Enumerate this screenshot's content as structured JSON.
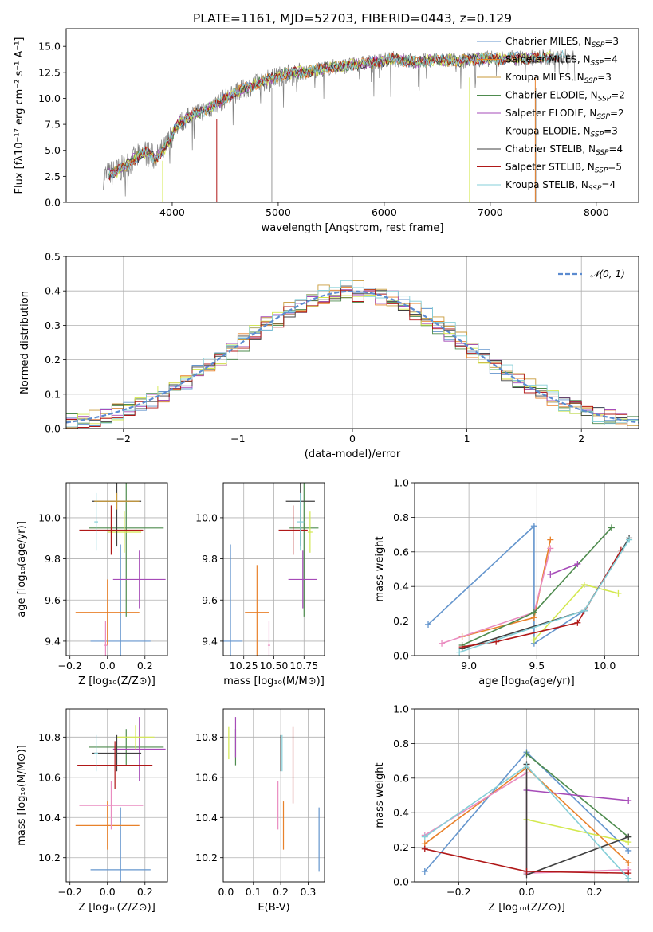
{
  "colors": {
    "Chabrier MILES": "#6495cd",
    "Salpeter MILES": "#e8812a",
    "Kroupa MILES": "#c89a3a",
    "Chabrier ELODIE": "#4e8b4e",
    "Salpeter ELODIE": "#a64bb8",
    "Kroupa ELODIE": "#d3e84e",
    "Chabrier STELIB": "#404040",
    "Salpeter STELIB": "#b01818",
    "Kroupa STELIB": "#86cfd8",
    "Pink": "#ea8cc0",
    "data": "#808080"
  },
  "chart_data": [
    {
      "id": "spectrum",
      "type": "line",
      "title": "PLATE=1161, MJD=52703, FIBERID=0443, z=0.129",
      "xlabel": "wavelength [Angstrom, rest frame]",
      "ylabel": "Flux [fλ10⁻¹⁷ erg cm⁻² s⁻¹ A⁻¹]",
      "xlim": [
        3000,
        8400
      ],
      "ylim": [
        0,
        16.7
      ],
      "xticks": [
        "4000",
        "5000",
        "6000",
        "7000",
        "8000"
      ],
      "yticks": [
        "0.0",
        "2.5",
        "5.0",
        "7.5",
        "10.0",
        "12.5",
        "15.0"
      ],
      "legend": [
        {
          "label": "Chabrier MILES, N",
          "sub": "SSP",
          "suffix": "=3"
        },
        {
          "label": "Salpeter MILES, N",
          "sub": "SSP",
          "suffix": "=4"
        },
        {
          "label": "Kroupa MILES, N",
          "sub": "SSP",
          "suffix": "=3"
        },
        {
          "label": "Chabrier ELODIE, N",
          "sub": "SSP",
          "suffix": "=2"
        },
        {
          "label": "Salpeter ELODIE, N",
          "sub": "SSP",
          "suffix": "=2"
        },
        {
          "label": "Kroupa ELODIE, N",
          "sub": "SSP",
          "suffix": "=3"
        },
        {
          "label": "Chabrier STELIB, N",
          "sub": "SSP",
          "suffix": "=4"
        },
        {
          "label": "Salpeter STELIB, N",
          "sub": "SSP",
          "suffix": "=5"
        },
        {
          "label": "Kroupa STELIB, N",
          "sub": "SSP",
          "suffix": "=4"
        }
      ],
      "legend_position": "right",
      "data_spine": [
        [
          3350,
          2.5
        ],
        [
          3500,
          3.1
        ],
        [
          3650,
          4.2
        ],
        [
          3750,
          4.8
        ],
        [
          3850,
          4.2
        ],
        [
          3950,
          5.5
        ],
        [
          4050,
          7.5
        ],
        [
          4200,
          8.5
        ],
        [
          4350,
          9.0
        ],
        [
          4500,
          10.0
        ],
        [
          4700,
          11.0
        ],
        [
          4900,
          11.8
        ],
        [
          5100,
          12.4
        ],
        [
          5300,
          12.6
        ],
        [
          5500,
          13.0
        ],
        [
          5700,
          13.2
        ],
        [
          5900,
          13.5
        ],
        [
          6100,
          13.8
        ],
        [
          6300,
          13.5
        ],
        [
          6500,
          13.7
        ],
        [
          6700,
          13.6
        ],
        [
          6900,
          13.8
        ],
        [
          7100,
          13.8
        ],
        [
          7300,
          13.9
        ],
        [
          7500,
          13.9
        ],
        [
          7700,
          14.0
        ],
        [
          7800,
          14.0
        ]
      ],
      "model_end": 7400,
      "gap_wl": [
        4940,
        6810,
        7430
      ]
    },
    {
      "id": "residuals",
      "type": "histogram",
      "xlabel": "(data-model)/error",
      "ylabel": "Normed distribution",
      "xlim": [
        -2.5,
        2.5
      ],
      "ylim": [
        0,
        0.5
      ],
      "xticks": [
        "−2",
        "−1",
        "0",
        "1",
        "2"
      ],
      "yticks": [
        "0.0",
        "0.1",
        "0.2",
        "0.3",
        "0.4",
        "0.5"
      ],
      "grid": true,
      "bin_width": 0.1,
      "legend": "𝒩(0, 1)",
      "legend_position": "top-right",
      "series_amp": [
        0.4,
        0.395,
        0.405,
        0.39,
        0.4,
        0.395,
        0.4,
        0.385,
        0.41
      ]
    },
    {
      "id": "age-vs-Z",
      "type": "errorbar",
      "xlabel": "Z [log₁₀(Z/Z⊙)]",
      "ylabel": "age  [log₁₀(age/yr)]",
      "xlim": [
        -0.22,
        0.32
      ],
      "ylim": [
        9.33,
        10.17
      ],
      "xticks": [
        "−0.2",
        "0.0",
        "0.2"
      ],
      "yticks": [
        "9.4",
        "9.6",
        "9.8",
        "10.0"
      ],
      "grid": true,
      "points": [
        {
          "s": "Chabrier MILES",
          "x": 0.07,
          "y": 9.4,
          "xe": 0.16,
          "ye": 0.47
        },
        {
          "s": "Salpeter MILES",
          "x": 0.0,
          "y": 9.54,
          "xe": 0.17,
          "ye": 0.16
        },
        {
          "s": "Pink",
          "x": -0.01,
          "y": 9.38,
          "xe": 0.01,
          "ye": 0.12
        },
        {
          "s": "Chabrier ELODIE",
          "x": 0.1,
          "y": 9.95,
          "xe": 0.2,
          "ye": 0.43
        },
        {
          "s": "Salpeter ELODIE",
          "x": 0.17,
          "y": 9.7,
          "xe": 0.14,
          "ye": 0.14
        },
        {
          "s": "Kroupa ELODIE",
          "x": 0.09,
          "y": 9.93,
          "xe": 0.09,
          "ye": 0.1
        },
        {
          "s": "Chabrier STELIB",
          "x": 0.05,
          "y": 10.08,
          "xe": 0.13,
          "ye": 0.22
        },
        {
          "s": "Salpeter STELIB",
          "x": 0.02,
          "y": 9.94,
          "xe": 0.17,
          "ye": 0.12
        },
        {
          "s": "Kroupa STELIB",
          "x": -0.06,
          "y": 9.98,
          "xe": 0.01,
          "ye": 0.14
        },
        {
          "s": "Kroupa MILES",
          "x": 0.05,
          "y": 10.08,
          "xe": 0.12,
          "ye": 0.04
        }
      ]
    },
    {
      "id": "age-vs-mass",
      "type": "errorbar",
      "xlabel": "mass [log₁₀(M/M⊙)]",
      "xlim": [
        10.08,
        10.92
      ],
      "ylim": [
        9.33,
        10.17
      ],
      "xticks": [
        "10.25",
        "10.50",
        "10.75"
      ],
      "yticks": [
        "9.4",
        "9.6",
        "9.8",
        "10.0"
      ],
      "grid": true,
      "points": [
        {
          "s": "Chabrier MILES",
          "x": 10.14,
          "y": 9.4,
          "xe": 0.1,
          "ye": 0.47
        },
        {
          "s": "Salpeter MILES",
          "x": 10.36,
          "y": 9.54,
          "xe": 0.1,
          "ye": 0.23
        },
        {
          "s": "Pink",
          "x": 10.46,
          "y": 9.38,
          "xe": 0.01,
          "ye": 0.12
        },
        {
          "s": "Chabrier ELODIE",
          "x": 10.75,
          "y": 9.95,
          "xe": 0.12,
          "ye": 0.43
        },
        {
          "s": "Salpeter ELODIE",
          "x": 10.74,
          "y": 9.7,
          "xe": 0.12,
          "ye": 0.14
        },
        {
          "s": "Kroupa ELODIE",
          "x": 10.8,
          "y": 9.93,
          "xe": 0.02,
          "ye": 0.1
        },
        {
          "s": "Chabrier STELIB",
          "x": 10.72,
          "y": 10.08,
          "xe": 0.12,
          "ye": 0.22
        },
        {
          "s": "Salpeter STELIB",
          "x": 10.66,
          "y": 9.94,
          "xe": 0.12,
          "ye": 0.12
        },
        {
          "s": "Kroupa STELIB",
          "x": 10.72,
          "y": 9.98,
          "xe": 0.03,
          "ye": 0.14
        }
      ]
    },
    {
      "id": "weight-vs-age",
      "type": "line",
      "xlabel": "age  [log₁₀(age/yr)]",
      "ylabel": "mass weight",
      "xlim": [
        8.6,
        10.25
      ],
      "ylim": [
        0,
        1
      ],
      "xticks": [
        "9.0",
        "9.5",
        "10.0"
      ],
      "yticks": [
        "0.0",
        "0.2",
        "0.4",
        "0.6",
        "0.8",
        "1.0"
      ],
      "grid": true,
      "series": [
        {
          "s": "Chabrier MILES",
          "x": [
            8.7,
            9.48,
            9.48,
            9.85
          ],
          "y": [
            0.18,
            0.75,
            0.07,
            0.26
          ]
        },
        {
          "s": "Salpeter MILES",
          "x": [
            8.95,
            9.48,
            9.6
          ],
          "y": [
            0.11,
            0.22,
            0.67
          ]
        },
        {
          "s": "Pink",
          "x": [
            8.8,
            9.48,
            9.6
          ],
          "y": [
            0.07,
            0.25,
            0.62
          ]
        },
        {
          "s": "Chabrier ELODIE",
          "x": [
            8.95,
            9.48,
            10.05
          ],
          "y": [
            0.06,
            0.25,
            0.74
          ]
        },
        {
          "s": "Salpeter ELODIE",
          "x": [
            9.6,
            9.8
          ],
          "y": [
            0.47,
            0.53
          ]
        },
        {
          "s": "Kroupa ELODIE",
          "x": [
            9.48,
            9.85,
            10.1
          ],
          "y": [
            0.09,
            0.41,
            0.36
          ]
        },
        {
          "s": "Chabrier STELIB",
          "x": [
            8.95,
            9.85,
            10.18
          ],
          "y": [
            0.04,
            0.26,
            0.68
          ]
        },
        {
          "s": "Salpeter STELIB",
          "x": [
            8.95,
            9.2,
            9.8,
            10.12
          ],
          "y": [
            0.05,
            0.08,
            0.19,
            0.61
          ]
        },
        {
          "s": "Kroupa STELIB",
          "x": [
            8.93,
            9.85,
            10.18
          ],
          "y": [
            0.02,
            0.26,
            0.67
          ]
        }
      ]
    },
    {
      "id": "mass-vs-Z",
      "type": "errorbar",
      "xlabel": "Z [log₁₀(Z/Z⊙)]",
      "ylabel": "mass [log₁₀(M/M⊙)]",
      "xlim": [
        -0.22,
        0.32
      ],
      "ylim": [
        10.08,
        10.94
      ],
      "xticks": [
        "−0.2",
        "0.0",
        "0.2"
      ],
      "yticks": [
        "10.2",
        "10.4",
        "10.6",
        "10.8"
      ],
      "grid": true,
      "points": [
        {
          "s": "Chabrier MILES",
          "x": 0.07,
          "y": 10.14,
          "xe": 0.16,
          "ye": 0.31
        },
        {
          "s": "Salpeter MILES",
          "x": 0.0,
          "y": 10.36,
          "xe": 0.17,
          "ye": 0.12
        },
        {
          "s": "Pink",
          "x": 0.02,
          "y": 10.46,
          "xe": 0.17,
          "ye": 0.12
        },
        {
          "s": "Chabrier ELODIE",
          "x": 0.1,
          "y": 10.75,
          "xe": 0.2,
          "ye": 0.09
        },
        {
          "s": "Salpeter ELODIE",
          "x": 0.17,
          "y": 10.74,
          "xe": 0.14,
          "ye": 0.16
        },
        {
          "s": "Kroupa ELODIE",
          "x": 0.15,
          "y": 10.8,
          "xe": 0.1,
          "ye": 0.06
        },
        {
          "s": "Chabrier STELIB",
          "x": 0.05,
          "y": 10.72,
          "xe": 0.13,
          "ye": 0.09
        },
        {
          "s": "Salpeter STELIB",
          "x": 0.04,
          "y": 10.66,
          "xe": 0.2,
          "ye": 0.12
        },
        {
          "s": "Kroupa STELIB",
          "x": -0.06,
          "y": 10.72,
          "xe": 0.01,
          "ye": 0.09
        }
      ]
    },
    {
      "id": "mass-vs-EBV",
      "type": "errorbar",
      "xlabel": "E(B-V)",
      "xlim": [
        -0.01,
        0.36
      ],
      "ylim": [
        10.08,
        10.94
      ],
      "xticks": [
        "0.0",
        "0.1",
        "0.2",
        "0.3"
      ],
      "yticks": [
        "10.2",
        "10.4",
        "10.6",
        "10.8"
      ],
      "grid": true,
      "points": [
        {
          "s": "Chabrier MILES",
          "x": 0.34,
          "y": 10.29,
          "xe": 0.0,
          "ye": 0.16
        },
        {
          "s": "Salpeter MILES",
          "x": 0.21,
          "y": 10.36,
          "xe": 0.0,
          "ye": 0.12
        },
        {
          "s": "Pink",
          "x": 0.19,
          "y": 10.46,
          "xe": 0.0,
          "ye": 0.12
        },
        {
          "s": "Chabrier ELODIE",
          "x": 0.035,
          "y": 10.75,
          "xe": 0.0,
          "ye": 0.09
        },
        {
          "s": "Salpeter ELODIE",
          "x": 0.035,
          "y": 10.8,
          "xe": 0.0,
          "ye": 0.1
        },
        {
          "s": "Kroupa ELODIE",
          "x": 0.01,
          "y": 10.77,
          "xe": 0.0,
          "ye": 0.08
        },
        {
          "s": "Chabrier STELIB",
          "x": 0.2,
          "y": 10.72,
          "xe": 0.0,
          "ye": 0.09
        },
        {
          "s": "Salpeter STELIB",
          "x": 0.245,
          "y": 10.66,
          "xe": 0.0,
          "ye": 0.19
        },
        {
          "s": "Kroupa STELIB",
          "x": 0.205,
          "y": 10.72,
          "xe": 0.0,
          "ye": 0.09
        }
      ]
    },
    {
      "id": "weight-vs-Z",
      "type": "line",
      "xlabel": "Z [log₁₀(Z/Z⊙)]",
      "ylabel": "mass weight",
      "xlim": [
        -0.33,
        0.33
      ],
      "ylim": [
        0,
        1
      ],
      "xticks": [
        "−0.2",
        "0.0",
        "0.2"
      ],
      "yticks": [
        "0.0",
        "0.2",
        "0.4",
        "0.6",
        "0.8",
        "1.0"
      ],
      "grid": true,
      "series": [
        {
          "s": "Chabrier MILES",
          "x": [
            -0.3,
            0.0,
            0.3
          ],
          "y": [
            0.06,
            0.75,
            0.18
          ]
        },
        {
          "s": "Salpeter MILES",
          "x": [
            -0.3,
            0.0,
            0.3
          ],
          "y": [
            0.22,
            0.66,
            0.11
          ]
        },
        {
          "s": "Pink",
          "x": [
            -0.3,
            0.0,
            0.0,
            0.3
          ],
          "y": [
            0.27,
            0.63,
            0.05,
            0.07
          ]
        },
        {
          "s": "Chabrier ELODIE",
          "x": [
            0.0,
            0.3
          ],
          "y": [
            0.74,
            0.26
          ]
        },
        {
          "s": "Salpeter ELODIE",
          "x": [
            0.0,
            0.3
          ],
          "y": [
            0.53,
            0.47
          ]
        },
        {
          "s": "Kroupa ELODIE",
          "x": [
            0.0,
            0.3
          ],
          "y": [
            0.36,
            0.23
          ]
        },
        {
          "s": "Chabrier STELIB",
          "x": [
            0.0,
            0.0,
            0.3
          ],
          "y": [
            0.68,
            0.04,
            0.26
          ]
        },
        {
          "s": "Salpeter STELIB",
          "x": [
            -0.3,
            0.0,
            0.3
          ],
          "y": [
            0.19,
            0.06,
            0.05
          ]
        },
        {
          "s": "Kroupa STELIB",
          "x": [
            -0.3,
            0.0,
            0.3
          ],
          "y": [
            0.26,
            0.67,
            0.02
          ]
        }
      ]
    }
  ]
}
